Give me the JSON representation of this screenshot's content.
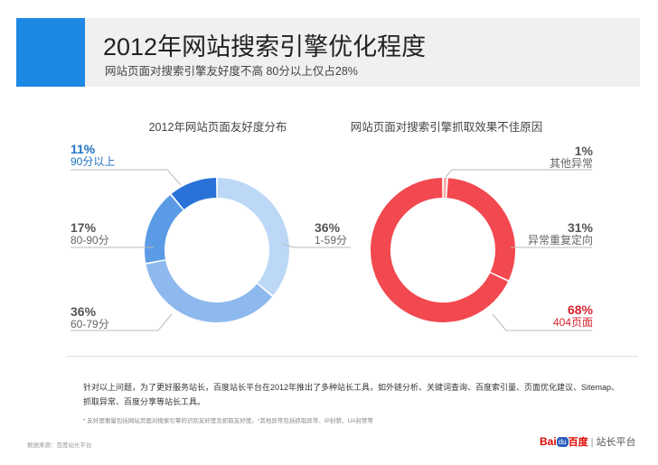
{
  "header": {
    "title": "2012年网站搜索引擎优化程度",
    "subtitle": "网站页面对搜索引擎友好度不高  80分以上仅占28%"
  },
  "colors": {
    "accent": "#1e88e5",
    "blue_dark": "#2a72d8",
    "blue_mid": "#5b9be6",
    "blue_light1": "#8db9ee",
    "blue_light2": "#bcd8f6",
    "red": "#f2484f",
    "red_light": "#f9a8ab",
    "label_blue": "#1e72c2",
    "label_red": "#d9232e"
  },
  "chart_data": [
    {
      "type": "pie",
      "title": "2012年网站页面友好度分布",
      "slices": [
        {
          "label": "90分以上",
          "value": 11,
          "pct": "11%"
        },
        {
          "label": "80-90分",
          "value": 17,
          "pct": "17%"
        },
        {
          "label": "60-79分",
          "value": 36,
          "pct": "36%"
        },
        {
          "label": "1-59分",
          "value": 36,
          "pct": "36%"
        }
      ]
    },
    {
      "type": "pie",
      "title": "网站页面对搜索引擎抓取效果不佳原因",
      "slices": [
        {
          "label": "其他异常",
          "value": 1,
          "pct": "1%"
        },
        {
          "label": "异常重复定向",
          "value": 31,
          "pct": "31%"
        },
        {
          "label": "404页面",
          "value": 68,
          "pct": "68%"
        }
      ]
    }
  ],
  "note": "针对以上问题，为了更好服务站长，百度站长平台在2012年推出了多种站长工具，如外链分析、关键词查询、百度索引量、页面优化建议、Sitemap、抓取异常、百度分享等站长工具。",
  "footnote": "* 友好度衡量包括网站页面对搜索引擎的识别友好度及抓取友好度。*其他异常包括抓取异常、IP封禁、UA封禁等",
  "source": "数据来源：百度站长平台",
  "logo": {
    "bai": "Bai",
    "du": "du",
    "baidu_cn": "百度",
    "sep": "|",
    "platform": "站长平台"
  }
}
